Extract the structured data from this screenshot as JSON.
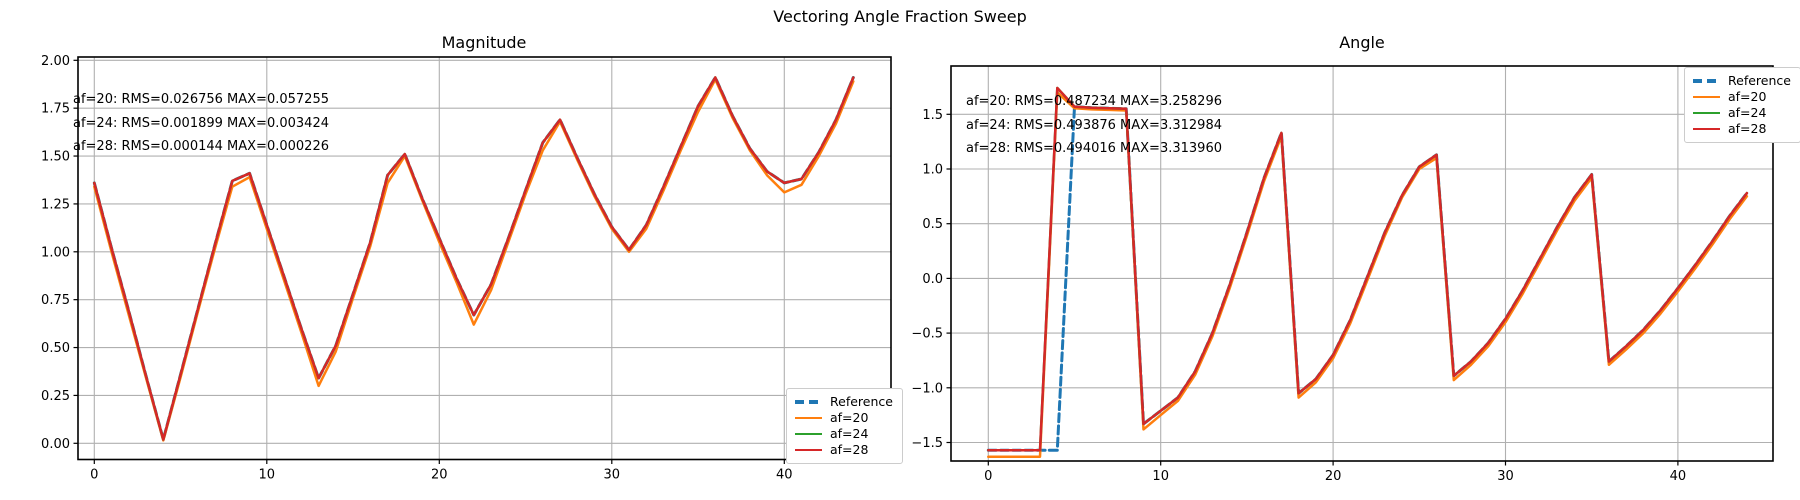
{
  "figure": {
    "suptitle": "Vectoring Angle Fraction Sweep"
  },
  "legend": {
    "entries": [
      {
        "label": "Reference",
        "color": "#1f77b4",
        "dashed": true
      },
      {
        "label": "af=20",
        "color": "#ff7f0e",
        "dashed": false
      },
      {
        "label": "af=24",
        "color": "#2ca02c",
        "dashed": false
      },
      {
        "label": "af=28",
        "color": "#d62728",
        "dashed": false
      }
    ]
  },
  "colors": {
    "grid": "#b0b0b0",
    "spine": "#000000",
    "text": "#000000"
  },
  "chart_data": [
    {
      "type": "line",
      "title": "Magnitude",
      "xlabel": "",
      "ylabel": "",
      "x_start": 0,
      "x_step": 1,
      "xlim": [
        -0.95,
        46.2
      ],
      "ylim": [
        -0.085,
        2.017
      ],
      "grid": true,
      "legend_position": "lower right",
      "xtick_values": [
        0,
        10,
        20,
        30,
        40
      ],
      "xtick_labels": [
        "0",
        "10",
        "20",
        "30",
        "40"
      ],
      "ytick_values": [
        0.0,
        0.25,
        0.5,
        0.75,
        1.0,
        1.25,
        1.5,
        1.75,
        2.0
      ],
      "ytick_labels": [
        "0.00",
        "0.25",
        "0.50",
        "0.75",
        "1.00",
        "1.25",
        "1.50",
        "1.75",
        "2.00"
      ],
      "annotations": [
        "af=20: RMS=0.026756 MAX=0.057255",
        "af=24: RMS=0.001899 MAX=0.003424",
        "af=28: RMS=0.000144 MAX=0.000226"
      ],
      "series": [
        {
          "name": "Reference",
          "color": "#1f77b4",
          "dashed": true,
          "values": [
            1.36,
            1.02,
            0.69,
            0.35,
            0.02,
            0.36,
            0.7,
            1.04,
            1.37,
            1.41,
            1.14,
            0.87,
            0.6,
            0.34,
            0.51,
            0.78,
            1.05,
            1.4,
            1.51,
            1.28,
            1.07,
            0.86,
            0.67,
            0.83,
            1.07,
            1.32,
            1.57,
            1.69,
            1.49,
            1.3,
            1.13,
            1.01,
            1.14,
            1.34,
            1.55,
            1.76,
            1.91,
            1.71,
            1.54,
            1.42,
            1.36,
            1.38,
            1.52,
            1.69,
            1.91
          ]
        },
        {
          "name": "af=20",
          "color": "#ff7f0e",
          "dashed": false,
          "values": [
            1.34,
            1.0,
            0.67,
            0.34,
            0.015,
            0.345,
            0.685,
            1.02,
            1.34,
            1.39,
            1.12,
            0.85,
            0.58,
            0.3,
            0.48,
            0.76,
            1.03,
            1.36,
            1.5,
            1.27,
            1.05,
            0.84,
            0.62,
            0.8,
            1.05,
            1.3,
            1.53,
            1.68,
            1.48,
            1.29,
            1.12,
            1.0,
            1.12,
            1.32,
            1.53,
            1.73,
            1.9,
            1.7,
            1.53,
            1.4,
            1.31,
            1.35,
            1.5,
            1.67,
            1.89
          ]
        },
        {
          "name": "af=24",
          "color": "#2ca02c",
          "dashed": false,
          "values": [
            1.36,
            1.02,
            0.69,
            0.35,
            0.02,
            0.36,
            0.7,
            1.04,
            1.37,
            1.41,
            1.14,
            0.87,
            0.6,
            0.34,
            0.51,
            0.78,
            1.05,
            1.4,
            1.51,
            1.28,
            1.07,
            0.86,
            0.67,
            0.83,
            1.07,
            1.32,
            1.57,
            1.69,
            1.49,
            1.3,
            1.13,
            1.01,
            1.14,
            1.34,
            1.55,
            1.76,
            1.91,
            1.71,
            1.54,
            1.42,
            1.36,
            1.38,
            1.52,
            1.69,
            1.91
          ]
        },
        {
          "name": "af=28",
          "color": "#d62728",
          "dashed": false,
          "values": [
            1.36,
            1.02,
            0.69,
            0.35,
            0.02,
            0.36,
            0.7,
            1.04,
            1.37,
            1.41,
            1.14,
            0.87,
            0.6,
            0.34,
            0.51,
            0.78,
            1.05,
            1.4,
            1.51,
            1.28,
            1.07,
            0.86,
            0.67,
            0.83,
            1.07,
            1.32,
            1.57,
            1.69,
            1.49,
            1.3,
            1.13,
            1.01,
            1.14,
            1.34,
            1.55,
            1.76,
            1.91,
            1.71,
            1.54,
            1.42,
            1.36,
            1.38,
            1.52,
            1.69,
            1.91
          ]
        }
      ]
    },
    {
      "type": "line",
      "title": "Angle",
      "xlabel": "",
      "ylabel": "",
      "x_start": 0,
      "x_step": 1,
      "xlim": [
        -2.15,
        45.5
      ],
      "ylim": [
        -1.67,
        1.94
      ],
      "grid": true,
      "legend_position": "upper right",
      "xtick_values": [
        0,
        10,
        20,
        30,
        40
      ],
      "xtick_labels": [
        "0",
        "10",
        "20",
        "30",
        "40"
      ],
      "ytick_values": [
        -1.5,
        -1.0,
        -0.5,
        0.0,
        0.5,
        1.0,
        1.5
      ],
      "ytick_labels": [
        "−1.5",
        "−1.0",
        "−0.5",
        "0.0",
        "0.5",
        "1.0",
        "1.5"
      ],
      "annotations": [
        "af=20: RMS=0.487234 MAX=3.258296",
        "af=24: RMS=0.493876 MAX=3.312984",
        "af=28: RMS=0.494016 MAX=3.313960"
      ],
      "series": [
        {
          "name": "Reference",
          "color": "#1f77b4",
          "dashed": true,
          "values": [
            -1.57,
            -1.57,
            -1.57,
            -1.57,
            -1.571,
            1.57,
            1.56,
            1.555,
            1.55,
            -1.33,
            -1.21,
            -1.09,
            -0.85,
            -0.5,
            -0.06,
            0.42,
            0.92,
            1.33,
            -1.05,
            -0.92,
            -0.7,
            -0.38,
            0.02,
            0.42,
            0.76,
            1.02,
            1.13,
            -0.89,
            -0.76,
            -0.59,
            -0.37,
            -0.11,
            0.18,
            0.47,
            0.74,
            0.95,
            -0.76,
            -0.62,
            -0.47,
            -0.29,
            -0.09,
            0.12,
            0.34,
            0.57,
            0.78
          ]
        },
        {
          "name": "af=20",
          "color": "#ff7f0e",
          "dashed": false,
          "values": [
            -1.63,
            -1.63,
            -1.63,
            -1.63,
            1.7,
            1.555,
            1.545,
            1.54,
            1.535,
            -1.38,
            -1.25,
            -1.12,
            -0.88,
            -0.53,
            -0.09,
            0.39,
            0.89,
            1.3,
            -1.09,
            -0.95,
            -0.73,
            -0.41,
            -0.01,
            0.39,
            0.74,
            1.0,
            1.1,
            -0.93,
            -0.79,
            -0.62,
            -0.4,
            -0.14,
            0.15,
            0.44,
            0.71,
            0.92,
            -0.79,
            -0.65,
            -0.5,
            -0.32,
            -0.12,
            0.09,
            0.31,
            0.54,
            0.75
          ]
        },
        {
          "name": "af=24",
          "color": "#2ca02c",
          "dashed": false,
          "values": [
            -1.57,
            -1.57,
            -1.57,
            -1.57,
            1.74,
            1.57,
            1.56,
            1.555,
            1.55,
            -1.33,
            -1.21,
            -1.09,
            -0.85,
            -0.5,
            -0.06,
            0.42,
            0.92,
            1.33,
            -1.05,
            -0.92,
            -0.7,
            -0.38,
            0.02,
            0.42,
            0.76,
            1.02,
            1.13,
            -0.89,
            -0.76,
            -0.59,
            -0.37,
            -0.11,
            0.18,
            0.47,
            0.74,
            0.95,
            -0.76,
            -0.62,
            -0.47,
            -0.29,
            -0.09,
            0.12,
            0.34,
            0.57,
            0.78
          ]
        },
        {
          "name": "af=28",
          "color": "#d62728",
          "dashed": false,
          "values": [
            -1.57,
            -1.57,
            -1.57,
            -1.57,
            1.74,
            1.57,
            1.56,
            1.555,
            1.55,
            -1.33,
            -1.21,
            -1.09,
            -0.85,
            -0.5,
            -0.06,
            0.42,
            0.92,
            1.33,
            -1.05,
            -0.92,
            -0.7,
            -0.38,
            0.02,
            0.42,
            0.76,
            1.02,
            1.13,
            -0.89,
            -0.76,
            -0.59,
            -0.37,
            -0.11,
            0.18,
            0.47,
            0.74,
            0.95,
            -0.76,
            -0.62,
            -0.47,
            -0.29,
            -0.09,
            0.12,
            0.34,
            0.57,
            0.78
          ]
        }
      ]
    }
  ]
}
